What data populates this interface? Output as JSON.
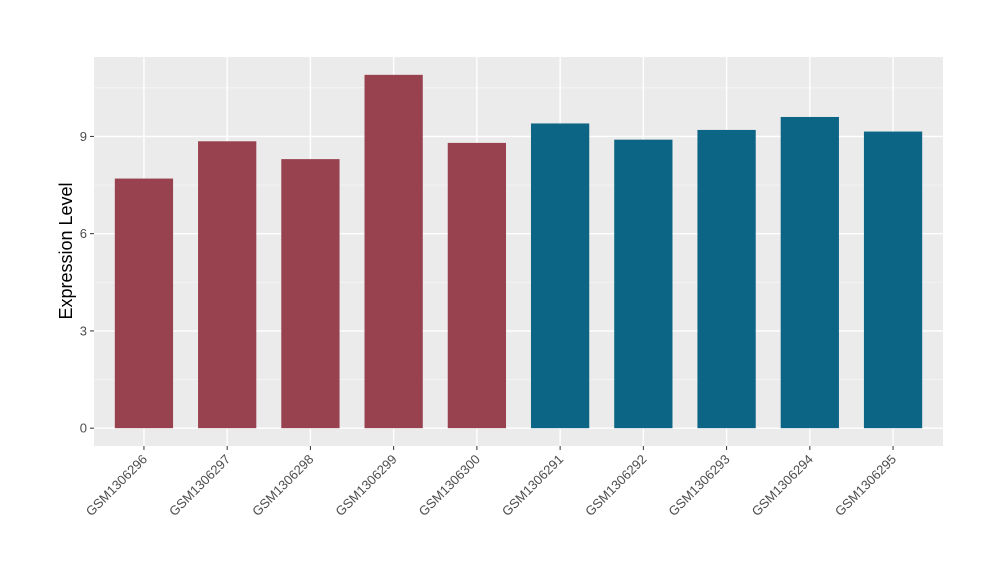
{
  "chart_data": {
    "type": "bar",
    "title": "",
    "xlabel": "",
    "ylabel": "Expression Level",
    "categories": [
      "GSM1306296",
      "GSM1306297",
      "GSM1306298",
      "GSM1306299",
      "GSM1306300",
      "GSM1306291",
      "GSM1306292",
      "GSM1306293",
      "GSM1306294",
      "GSM1306295"
    ],
    "values": [
      7.7,
      8.85,
      8.3,
      10.9,
      8.8,
      9.4,
      8.9,
      9.2,
      9.6,
      9.15
    ],
    "bar_colors": [
      "#99424F",
      "#99424F",
      "#99424F",
      "#99424F",
      "#99424F",
      "#0C6585",
      "#0C6585",
      "#0C6585",
      "#0C6585",
      "#0C6585"
    ],
    "y_ticks": [
      0,
      3,
      6,
      9
    ],
    "y_tick_labels": [
      "0",
      "3",
      "6",
      "9"
    ],
    "ylim": [
      -0.55,
      11.45
    ],
    "grid": true,
    "legend": "none",
    "colors": {
      "panel_background": "#EBEBEB",
      "grid_major": "#FFFFFF",
      "grid_minor": "#F5F5F5",
      "tick": "#333333"
    }
  }
}
